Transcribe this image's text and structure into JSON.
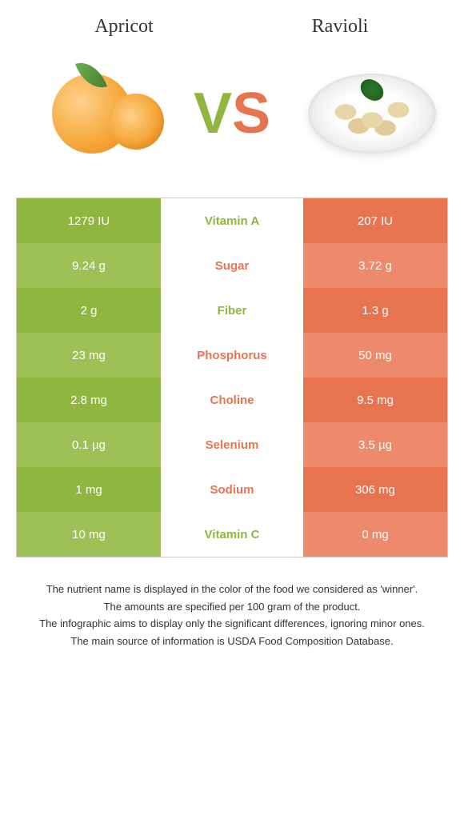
{
  "colors": {
    "left_primary": "#8fb63e",
    "left_alt": "#9ec157",
    "right_primary": "#e8744f",
    "right_alt": "#ec8a6b",
    "label_left": "#8fb63e",
    "label_right": "#e8744f"
  },
  "header": {
    "left": "Apricot",
    "right": "Ravioli"
  },
  "vs": {
    "v": "V",
    "s": "S"
  },
  "rows": [
    {
      "label": "Vitamin A",
      "left": "1279 IU",
      "right": "207 IU",
      "winner": "left"
    },
    {
      "label": "Sugar",
      "left": "9.24 g",
      "right": "3.72 g",
      "winner": "right"
    },
    {
      "label": "Fiber",
      "left": "2 g",
      "right": "1.3 g",
      "winner": "left"
    },
    {
      "label": "Phosphorus",
      "left": "23 mg",
      "right": "50 mg",
      "winner": "right"
    },
    {
      "label": "Choline",
      "left": "2.8 mg",
      "right": "9.5 mg",
      "winner": "right"
    },
    {
      "label": "Selenium",
      "left": "0.1 µg",
      "right": "3.5 µg",
      "winner": "right"
    },
    {
      "label": "Sodium",
      "left": "1 mg",
      "right": "306 mg",
      "winner": "right"
    },
    {
      "label": "Vitamin C",
      "left": "10 mg",
      "right": "0 mg",
      "winner": "left"
    }
  ],
  "footer": [
    "The nutrient name is displayed in the color of the food we considered as 'winner'.",
    "The amounts are specified per 100 gram of the product.",
    "The infographic aims to display only the significant differences, ignoring minor ones.",
    "The main source of information is USDA Food Composition Database."
  ]
}
